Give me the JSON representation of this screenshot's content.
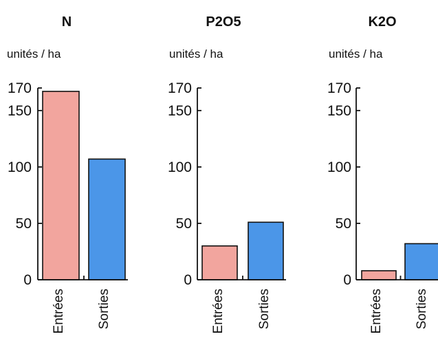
{
  "chart_data": [
    {
      "type": "bar",
      "title": "N",
      "ylabel": "unités / ha",
      "categories": [
        "Entrées",
        "Sorties"
      ],
      "values": [
        167,
        107
      ],
      "ylim": [
        0,
        170
      ],
      "yticks": [
        0,
        50,
        100,
        150,
        170
      ],
      "colors": [
        "#f2a59e",
        "#4b96e8"
      ]
    },
    {
      "type": "bar",
      "title": "P2O5",
      "ylabel": "unités / ha",
      "categories": [
        "Entrées",
        "Sorties"
      ],
      "values": [
        30,
        51
      ],
      "ylim": [
        0,
        170
      ],
      "yticks": [
        0,
        50,
        100,
        150,
        170
      ],
      "colors": [
        "#f2a59e",
        "#4b96e8"
      ]
    },
    {
      "type": "bar",
      "title": "K2O",
      "ylabel": "unités / ha",
      "categories": [
        "Entrées",
        "Sorties"
      ],
      "values": [
        8,
        32
      ],
      "ylim": [
        0,
        170
      ],
      "yticks": [
        0,
        50,
        100,
        150,
        170
      ],
      "colors": [
        "#f2a59e",
        "#4b96e8"
      ]
    }
  ]
}
